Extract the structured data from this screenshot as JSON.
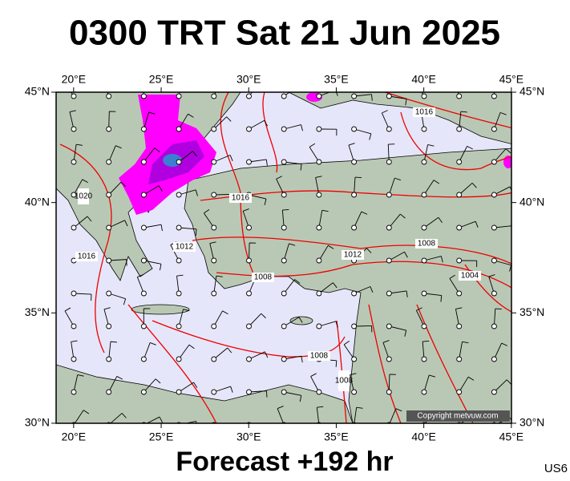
{
  "header": {
    "title": "0300 TRT Sat 21 Jun 2025"
  },
  "footer": {
    "forecast": "Forecast +192 hr",
    "code": "US6"
  },
  "map": {
    "copyright": "Copyright metvuw.com",
    "lon_ticks": [
      {
        "value": 20,
        "label": "20°E"
      },
      {
        "value": 25,
        "label": "25°E"
      },
      {
        "value": 30,
        "label": "30°E"
      },
      {
        "value": 35,
        "label": "35°E"
      },
      {
        "value": 40,
        "label": "40°E"
      },
      {
        "value": 45,
        "label": "45°E"
      }
    ],
    "lat_ticks": [
      {
        "value": 45,
        "label": "45°N"
      },
      {
        "value": 40,
        "label": "40°N"
      },
      {
        "value": 35,
        "label": "35°N"
      },
      {
        "value": 30,
        "label": "30°N"
      }
    ],
    "isobar_labels": [
      "1016",
      "1016",
      "1020",
      "1016",
      "1012",
      "1008",
      "1012",
      "1008",
      "1004",
      "1008",
      "1008"
    ]
  }
}
